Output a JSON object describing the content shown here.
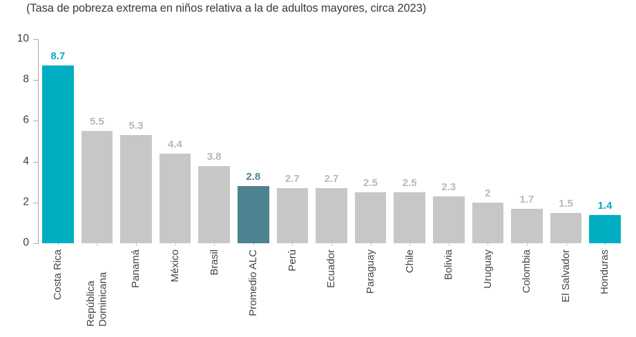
{
  "chart_data": {
    "type": "bar",
    "title": "(Tasa de pobreza extrema en niños relativa a la de adultos mayores, circa 2023)",
    "categories": [
      "Costa Rica",
      "República Dominicana",
      "Panamá",
      "México",
      "Brasil",
      "Promedio ALC",
      "Perú",
      "Ecuador",
      "Paraguay",
      "Chile",
      "Bolivia",
      "Uruguay",
      "Colombia",
      "El Salvador",
      "Honduras"
    ],
    "values": [
      8.7,
      5.5,
      5.3,
      4.4,
      3.8,
      2.8,
      2.7,
      2.7,
      2.5,
      2.5,
      2.3,
      2,
      1.7,
      1.5,
      1.4
    ],
    "value_labels": [
      "8.7",
      "5.5",
      "5.3",
      "4.4",
      "3.8",
      "2.8",
      "2.7",
      "2.7",
      "2.5",
      "2.5",
      "2.3",
      "2",
      "1.7",
      "1.5",
      "1.4"
    ],
    "bar_styles": [
      "highlight",
      "default",
      "default",
      "default",
      "default",
      "average",
      "default",
      "default",
      "default",
      "default",
      "default",
      "default",
      "default",
      "default",
      "highlight"
    ],
    "xlabel": "",
    "ylabel": "",
    "ylim": [
      0,
      10
    ],
    "yticks": [
      0,
      2,
      4,
      6,
      8,
      10
    ],
    "grid": false,
    "legend": null,
    "colors": {
      "highlight_bar": "#00aec1",
      "average_bar": "#4e8290",
      "default_bar": "#c7c7c7",
      "default_value_label": "#b8b8b8",
      "axis_line": "#a9a9a9",
      "tick_label": "#3d3d3d",
      "category_label": "#444444",
      "title_text": "#3a3a3a"
    }
  }
}
